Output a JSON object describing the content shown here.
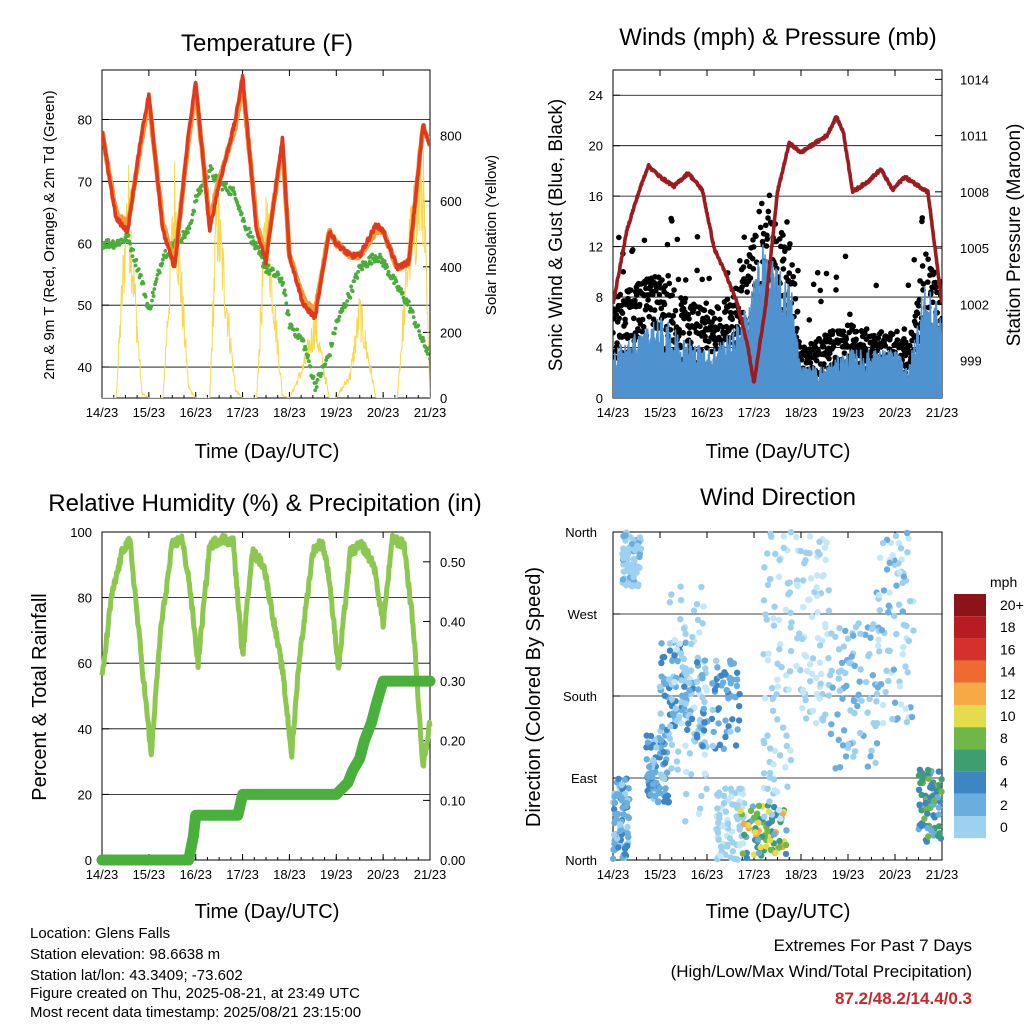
{
  "colors": {
    "t2m": "#e03a1e",
    "t9m": "#f39a3a",
    "td2m": "#4aac3c",
    "solar": "#f7d94c",
    "gust": "#000000",
    "wind": "#4f92d0",
    "pressure": "#9b1c20",
    "rh": "#8cc850",
    "precip": "#49b03c",
    "extremes_value": "#c8282c",
    "wind_speed_palette": [
      "#c6e7f7",
      "#9dd1ef",
      "#6aaede",
      "#3e86c3",
      "#3f9e6f",
      "#6db847",
      "#e5dc4c",
      "#f7a945",
      "#ef6a2e",
      "#d5312a",
      "#b71c22",
      "#8c1419"
    ]
  },
  "chart_data": [
    {
      "id": "temperature",
      "type": "line",
      "title": "Temperature (F)",
      "xlabel": "Time (Day/UTC)",
      "ylabel": "2m & 9m T (Red, Orange) & 2m Td (Green)",
      "ylabel_right": "Solar Insolation (Yellow)",
      "x_ticks": [
        "14/23",
        "15/23",
        "16/23",
        "17/23",
        "18/23",
        "19/23",
        "20/23",
        "21/23"
      ],
      "xlim": [
        0,
        7
      ],
      "ylim": [
        35,
        88
      ],
      "y_ticks": [
        40,
        50,
        60,
        70,
        80
      ],
      "ylim_right": [
        0,
        1000
      ],
      "y_ticks_right": [
        0,
        200,
        400,
        600,
        800
      ],
      "grid": true,
      "series": [
        {
          "key": "t2m",
          "x": [
            0,
            0.3,
            0.55,
            0.85,
            1.0,
            1.3,
            1.55,
            1.85,
            2.0,
            2.3,
            2.45,
            2.85,
            3.0,
            3.3,
            3.5,
            3.85,
            4.0,
            4.3,
            4.55,
            4.85,
            5.0,
            5.3,
            5.5,
            5.85,
            6.0,
            6.3,
            6.55,
            6.85,
            7.0
          ],
          "y": [
            78,
            64,
            62,
            78,
            84,
            62,
            56,
            78,
            86,
            62,
            68,
            80,
            87,
            62,
            57,
            77,
            58,
            50,
            48,
            62,
            60,
            58,
            58,
            63,
            62,
            56,
            57,
            79,
            76
          ]
        },
        {
          "key": "t9m",
          "x": [
            0,
            0.3,
            0.55,
            0.85,
            1.0,
            1.3,
            1.55,
            1.85,
            2.0,
            2.3,
            2.45,
            2.85,
            3.0,
            3.3,
            3.5,
            3.85,
            4.0,
            4.3,
            4.55,
            4.85,
            5.0,
            5.3,
            5.5,
            5.85,
            6.0,
            6.3,
            6.55,
            6.85,
            7.0
          ],
          "y": [
            78,
            65,
            63,
            77,
            83,
            63,
            57,
            77,
            85,
            63,
            69,
            79,
            86,
            63,
            58,
            76,
            58,
            51,
            49,
            62,
            60,
            58,
            58,
            62,
            62,
            56,
            57,
            79,
            76
          ]
        },
        {
          "key": "td2m",
          "x": [
            0,
            0.3,
            0.55,
            0.85,
            1.0,
            1.3,
            1.55,
            1.85,
            2.0,
            2.3,
            2.45,
            2.85,
            3.0,
            3.3,
            3.5,
            3.85,
            4.0,
            4.3,
            4.55,
            4.85,
            5.0,
            5.3,
            5.5,
            5.85,
            6.0,
            6.3,
            6.55,
            6.85,
            7.0
          ],
          "y": [
            60,
            60,
            61,
            54,
            49,
            58,
            60,
            62,
            67,
            72,
            70,
            68,
            64,
            59,
            56,
            54,
            47,
            44,
            37,
            42,
            47,
            52,
            56,
            58,
            57,
            53,
            50,
            44,
            42
          ]
        },
        {
          "key": "solar",
          "axis": "right",
          "x": [
            0,
            0.3,
            0.55,
            0.85,
            1.0,
            1.3,
            1.55,
            1.85,
            2.0,
            2.3,
            2.45,
            2.85,
            3.0,
            3.3,
            3.5,
            3.85,
            4.0,
            4.3,
            4.55,
            4.85,
            5.0,
            5.3,
            5.5,
            5.85,
            6.0,
            6.3,
            6.55,
            6.85,
            7.0
          ],
          "y": [
            0,
            0,
            780,
            20,
            0,
            0,
            760,
            40,
            0,
            0,
            720,
            30,
            0,
            0,
            700,
            10,
            0,
            120,
            280,
            0,
            0,
            90,
            330,
            0,
            0,
            0,
            580,
            820,
            0
          ]
        }
      ]
    },
    {
      "id": "winds",
      "type": "line",
      "title": "Winds (mph) & Pressure (mb)",
      "xlabel": "Time (Day/UTC)",
      "ylabel": "Sonic Wind & Gust (Blue, Black)",
      "ylabel_right": "Station Pressure (Maroon)",
      "x_ticks": [
        "14/23",
        "15/23",
        "16/23",
        "17/23",
        "18/23",
        "19/23",
        "20/23",
        "21/23"
      ],
      "xlim": [
        0,
        7
      ],
      "ylim": [
        0,
        26
      ],
      "y_ticks": [
        0,
        4,
        8,
        12,
        16,
        20,
        24
      ],
      "ylim_right": [
        997,
        1014.5
      ],
      "y_ticks_right": [
        999,
        1002,
        1005,
        1008,
        1011,
        1014
      ],
      "grid": true,
      "series": [
        {
          "key": "pressure",
          "axis": "right",
          "x": [
            0,
            0.3,
            0.55,
            0.75,
            1.0,
            1.3,
            1.6,
            1.9,
            2.15,
            2.4,
            2.65,
            2.85,
            3.0,
            3.25,
            3.5,
            3.75,
            4.0,
            4.3,
            4.55,
            4.75,
            4.9,
            5.1,
            5.4,
            5.7,
            5.95,
            6.2,
            6.45,
            6.7,
            6.9,
            7.0
          ],
          "y": [
            1002,
            1006,
            1008,
            1009.4,
            1008.8,
            1008.3,
            1009,
            1008.1,
            1005,
            1003.6,
            1002,
            1000,
            997.8,
            1002,
            1008,
            1010.6,
            1010.1,
            1010.6,
            1011,
            1012,
            1011.2,
            1008,
            1008.5,
            1009.2,
            1008.1,
            1008.8,
            1008.4,
            1008,
            1004,
            1002
          ]
        },
        {
          "key": "gust",
          "envelope": [
            [
              0,
              8
            ],
            [
              0.5,
              9
            ],
            [
              1.0,
              10
            ],
            [
              1.5,
              8
            ],
            [
              2.0,
              7
            ],
            [
              2.5,
              8
            ],
            [
              2.9,
              12
            ],
            [
              3.2,
              16
            ],
            [
              3.5,
              14
            ],
            [
              3.8,
              12
            ],
            [
              4.0,
              4
            ],
            [
              4.5,
              5
            ],
            [
              5.0,
              6
            ],
            [
              5.5,
              5
            ],
            [
              6.0,
              6
            ],
            [
              6.3,
              4
            ],
            [
              6.6,
              12
            ],
            [
              6.9,
              10
            ],
            [
              7.0,
              9
            ]
          ]
        },
        {
          "key": "wind",
          "envelope": [
            [
              0,
              3
            ],
            [
              0.5,
              4
            ],
            [
              1.0,
              5
            ],
            [
              1.5,
              4
            ],
            [
              2.0,
              3
            ],
            [
              2.5,
              4
            ],
            [
              2.9,
              6
            ],
            [
              3.2,
              10
            ],
            [
              3.5,
              8
            ],
            [
              3.8,
              7
            ],
            [
              4.0,
              2
            ],
            [
              4.5,
              2
            ],
            [
              5.0,
              3
            ],
            [
              5.5,
              3
            ],
            [
              6.0,
              3
            ],
            [
              6.3,
              2
            ],
            [
              6.6,
              7
            ],
            [
              6.9,
              6
            ],
            [
              7.0,
              5
            ]
          ]
        }
      ]
    },
    {
      "id": "humidity",
      "type": "line",
      "title": "Relative Humidity (%) & Precipitation (in)",
      "xlabel": "Time (Day/UTC)",
      "ylabel": "Percent & Total Rainfall",
      "x_ticks": [
        "14/23",
        "15/23",
        "16/23",
        "17/23",
        "18/23",
        "19/23",
        "20/23",
        "21/23"
      ],
      "xlim": [
        0,
        7
      ],
      "ylim": [
        0,
        100
      ],
      "y_ticks": [
        0,
        20,
        40,
        60,
        80,
        100
      ],
      "ylim_right": [
        0,
        0.55
      ],
      "y_ticks_right": [
        "0.00",
        "0.10",
        "0.20",
        "0.30",
        "0.40",
        "0.50"
      ],
      "grid": true,
      "series": [
        {
          "key": "rh",
          "x": [
            0,
            0.2,
            0.45,
            0.6,
            0.85,
            1.05,
            1.25,
            1.5,
            1.7,
            1.85,
            2.05,
            2.3,
            2.55,
            2.8,
            3.0,
            3.2,
            3.45,
            3.6,
            3.85,
            4.05,
            4.2,
            4.5,
            4.7,
            4.85,
            5.05,
            5.3,
            5.55,
            5.8,
            6.0,
            6.2,
            6.45,
            6.65,
            6.85,
            7.0
          ],
          "y": [
            55,
            80,
            95,
            97,
            60,
            32,
            70,
            96,
            98,
            86,
            60,
            96,
            98,
            97,
            62,
            94,
            90,
            78,
            58,
            32,
            60,
            94,
            97,
            86,
            58,
            94,
            96,
            90,
            72,
            98,
            96,
            70,
            28,
            42
          ]
        },
        {
          "key": "precip",
          "axis": "right",
          "x": [
            0,
            1.0,
            1.85,
            1.95,
            2.0,
            2.9,
            3.0,
            3.1,
            4.0,
            5.0,
            5.25,
            5.35,
            5.5,
            5.6,
            5.75,
            5.85,
            6.0,
            6.5,
            7.0
          ],
          "y": [
            0,
            0,
            0,
            0.04,
            0.075,
            0.075,
            0.11,
            0.11,
            0.11,
            0.11,
            0.13,
            0.15,
            0.17,
            0.2,
            0.23,
            0.26,
            0.3,
            0.3,
            0.3
          ]
        }
      ]
    },
    {
      "id": "wind_direction",
      "type": "scatter",
      "title": "Wind Direction",
      "xlabel": "Time (Day/UTC)",
      "ylabel": "Direction (Colored By Speed)",
      "x_ticks": [
        "14/23",
        "15/23",
        "16/23",
        "17/23",
        "18/23",
        "19/23",
        "20/23",
        "21/23"
      ],
      "xlim": [
        0,
        7
      ],
      "ylim": [
        0,
        360
      ],
      "y_ticks": [
        {
          "v": 0,
          "label": "North"
        },
        {
          "v": 90,
          "label": "East"
        },
        {
          "v": 180,
          "label": "South"
        },
        {
          "v": 270,
          "label": "West"
        },
        {
          "v": 360,
          "label": "North"
        }
      ],
      "grid": true,
      "legend": {
        "title": "mph",
        "labels": [
          "20+",
          "18",
          "16",
          "14",
          "12",
          "10",
          "8",
          "6",
          "4",
          "2",
          "0"
        ],
        "placement": "right"
      },
      "clusters": [
        {
          "x": [
            0,
            0.35
          ],
          "dir": [
            0,
            90
          ],
          "speed": [
            2,
            6
          ]
        },
        {
          "x": [
            0.2,
            0.6
          ],
          "dir": [
            300,
            360
          ],
          "speed": [
            1,
            4
          ]
        },
        {
          "x": [
            0.7,
            1.2
          ],
          "dir": [
            60,
            140
          ],
          "speed": [
            2,
            7
          ]
        },
        {
          "x": [
            1.0,
            1.6
          ],
          "dir": [
            140,
            240
          ],
          "speed": [
            2,
            7
          ]
        },
        {
          "x": [
            1.2,
            2.0
          ],
          "dir": [
            40,
            300
          ],
          "speed": [
            0,
            3
          ]
        },
        {
          "x": [
            1.6,
            2.7
          ],
          "dir": [
            120,
            220
          ],
          "speed": [
            2,
            7
          ]
        },
        {
          "x": [
            2.2,
            2.8
          ],
          "dir": [
            0,
            80
          ],
          "speed": [
            0,
            3
          ]
        },
        {
          "x": [
            2.7,
            3.7
          ],
          "dir": [
            0,
            60
          ],
          "speed": [
            4,
            14
          ]
        },
        {
          "x": [
            3.2,
            3.8
          ],
          "dir": [
            40,
            360
          ],
          "speed": [
            0,
            3
          ]
        },
        {
          "x": [
            3.9,
            4.6
          ],
          "dir": [
            150,
            360
          ],
          "speed": [
            0,
            2
          ]
        },
        {
          "x": [
            4.6,
            5.7
          ],
          "dir": [
            100,
            260
          ],
          "speed": [
            1,
            5
          ]
        },
        {
          "x": [
            5.6,
            6.4
          ],
          "dir": [
            150,
            360
          ],
          "speed": [
            0,
            4
          ]
        },
        {
          "x": [
            6.5,
            7.0
          ],
          "dir": [
            20,
            100
          ],
          "speed": [
            4,
            10
          ]
        }
      ]
    }
  ],
  "station_info": {
    "location": "Location: Glens Falls",
    "elevation": "Station elevation: 98.6638 m",
    "latlon": "Station lat/lon: 43.3409; -73.602",
    "created": "Figure created on Thu, 2025-08-21, at 23:49 UTC",
    "recent": "Most recent data timestamp: 2025/08/21 23:15:00"
  },
  "extremes": {
    "title": "Extremes For Past 7 Days",
    "subtitle": "(High/Low/Max Wind/Total Precipitation)",
    "value": "87.2/48.2/14.4/0.3"
  }
}
